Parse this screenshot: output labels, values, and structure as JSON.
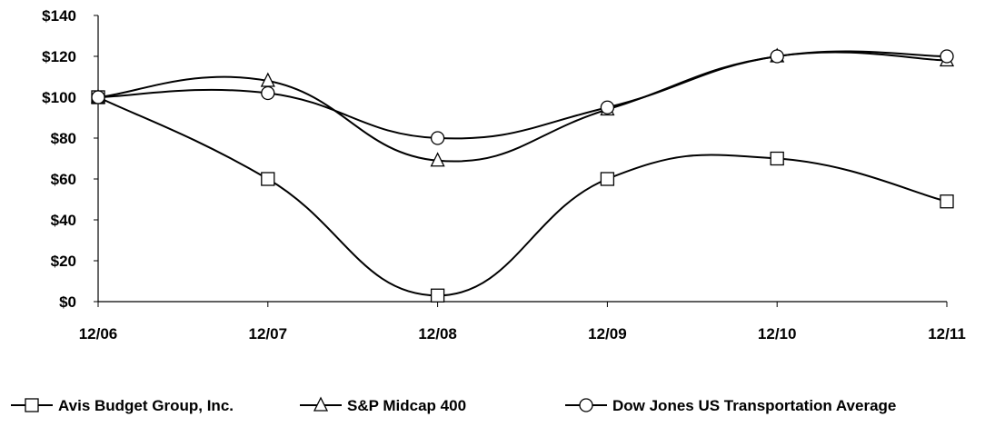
{
  "chart_data": {
    "type": "line",
    "title": "",
    "xlabel": "",
    "ylabel": "",
    "categories": [
      "12/06",
      "12/07",
      "12/08",
      "12/09",
      "12/10",
      "12/11"
    ],
    "ylim": [
      0,
      140
    ],
    "yticks": [
      "$0",
      "$20",
      "$40",
      "$60",
      "$80",
      "$100",
      "$120",
      "$140"
    ],
    "ytick_values": [
      0,
      20,
      40,
      60,
      80,
      100,
      120,
      140
    ],
    "grid": false,
    "legend_position": "bottom",
    "smooth": true,
    "series": [
      {
        "name": "Avis Budget Group, Inc.",
        "marker": "square",
        "values": [
          100,
          60,
          3,
          60,
          70,
          49
        ]
      },
      {
        "name": "S&P Midcap 400",
        "marker": "triangle",
        "values": [
          100,
          108,
          69,
          94,
          120,
          118
        ]
      },
      {
        "name": "Dow Jones US Transportation Average",
        "marker": "circle",
        "values": [
          100,
          102,
          80,
          95,
          120,
          120
        ]
      }
    ],
    "colors": {
      "line": "#000000",
      "background": "#ffffff"
    }
  }
}
